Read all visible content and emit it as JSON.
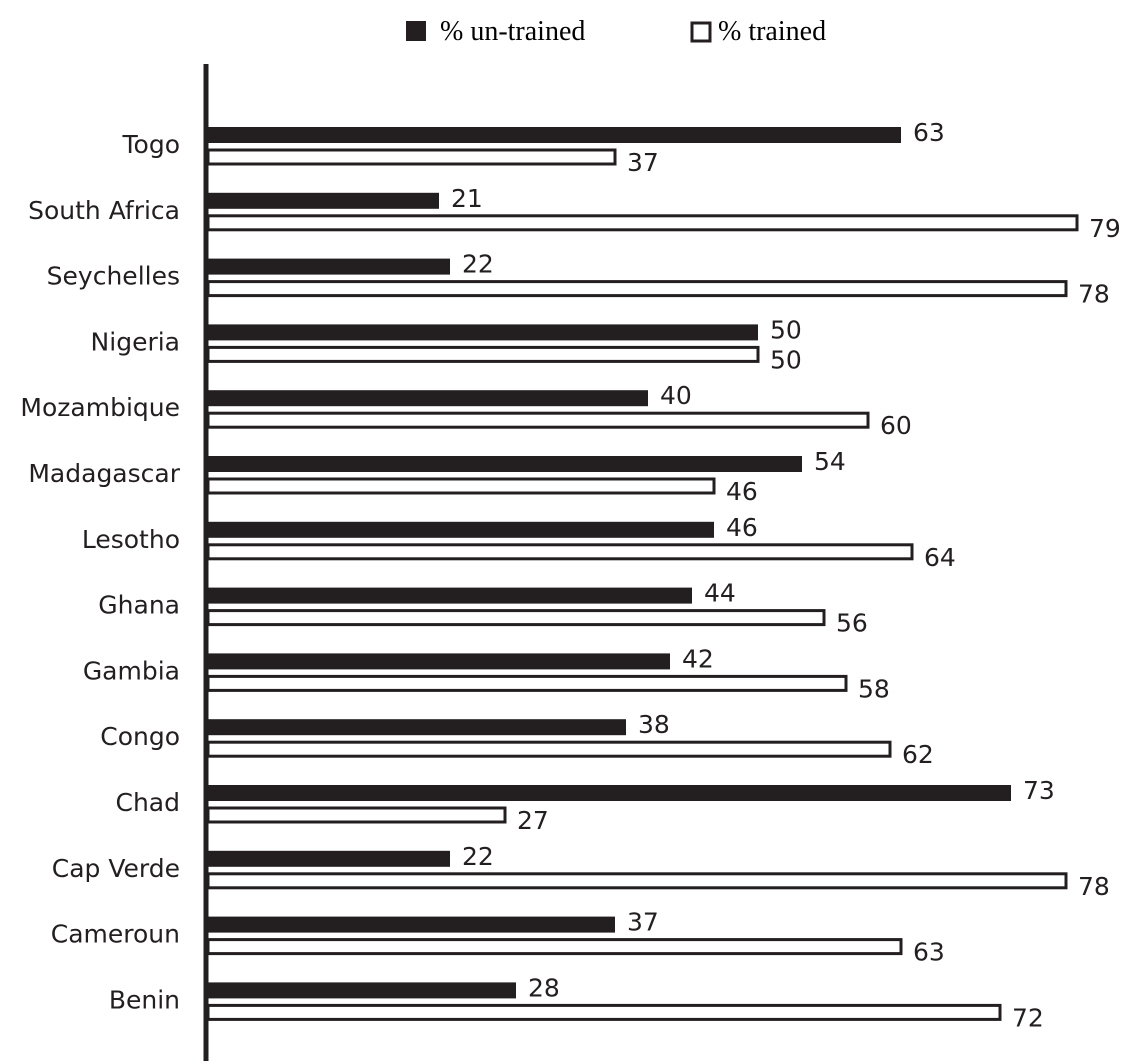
{
  "chart_data": {
    "type": "bar",
    "orientation": "horizontal",
    "categories": [
      "Togo",
      "South Africa",
      "Seychelles",
      "Nigeria",
      "Mozambique",
      "Madagascar",
      "Lesotho",
      "Ghana",
      "Gambia",
      "Congo",
      "Chad",
      "Cap Verde",
      "Cameroun",
      "Benin"
    ],
    "series": [
      {
        "name": "% un-trained",
        "color": "#231f20",
        "fill": "solid",
        "values": [
          63,
          21,
          22,
          50,
          40,
          54,
          46,
          44,
          42,
          38,
          73,
          22,
          37,
          28
        ]
      },
      {
        "name": "% trained",
        "color": "#ffffff",
        "fill": "outline",
        "values": [
          37,
          79,
          78,
          50,
          60,
          46,
          64,
          56,
          58,
          62,
          27,
          78,
          63,
          72
        ]
      }
    ],
    "xlim": [
      0,
      79
    ],
    "legend_position": "top-center",
    "grid": false,
    "data_labels": true
  }
}
